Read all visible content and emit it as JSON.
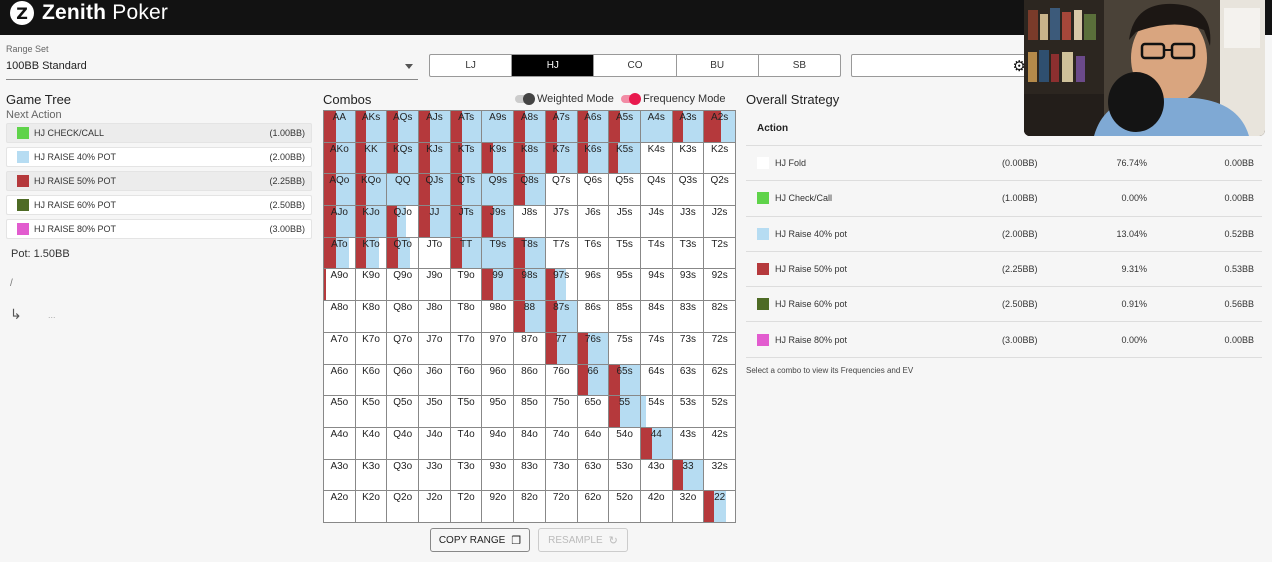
{
  "app": {
    "logo_letter": "Z",
    "name_bold": "Zenith",
    "name_rest": " Poker"
  },
  "range_set": {
    "label": "Range Set",
    "value": "100BB Standard"
  },
  "positions": [
    {
      "label": "LJ",
      "active": false
    },
    {
      "label": "HJ",
      "active": true
    },
    {
      "label": "CO",
      "active": false
    },
    {
      "label": "BU",
      "active": false
    },
    {
      "label": "SB",
      "active": false
    }
  ],
  "game_tree": {
    "title": "Game Tree",
    "next_action": "Next Action",
    "items": [
      {
        "label": "HJ CHECK/CALL",
        "bb": "(1.00BB)",
        "color": "#5fd34a",
        "highlight": true
      },
      {
        "label": "HJ RAISE 40% POT",
        "bb": "(2.00BB)",
        "color": "#b6dcf2",
        "highlight": false
      },
      {
        "label": "HJ RAISE 50% POT",
        "bb": "(2.25BB)",
        "color": "#b5393c",
        "highlight": true
      },
      {
        "label": "HJ RAISE 60% POT",
        "bb": "(2.50BB)",
        "color": "#4e6b25",
        "highlight": false
      },
      {
        "label": "HJ RAISE 80% POT",
        "bb": "(3.00BB)",
        "color": "#e25ccf",
        "highlight": false
      }
    ],
    "pot": "Pot: 1.50BB",
    "path": "/",
    "dots": "..."
  },
  "combos": {
    "title": "Combos",
    "weighted_label": "Weighted Mode",
    "frequency_label": "Frequency Mode",
    "colors": {
      "fold": "#ffffff",
      "raise40": "#b6dcf2",
      "raise50": "#b5393c"
    },
    "rows": [
      [
        [
          "AA",
          0.4,
          0.6
        ],
        [
          "AKs",
          0.35,
          0.65
        ],
        [
          "AQs",
          0.35,
          0.65
        ],
        [
          "AJs",
          0.35,
          0.65
        ],
        [
          "ATs",
          0.35,
          0.65
        ],
        [
          "A9s",
          0,
          1
        ],
        [
          "A8s",
          0.35,
          0.65
        ],
        [
          "A7s",
          0.35,
          0.65
        ],
        [
          "A6s",
          0.35,
          0.65
        ],
        [
          "A5s",
          0.35,
          0.65
        ],
        [
          "A4s",
          0,
          1
        ],
        [
          "A3s",
          0.35,
          0.65
        ],
        [
          "A2s",
          0.55,
          0.45
        ]
      ],
      [
        [
          "AKo",
          0.4,
          0.6
        ],
        [
          "KK",
          0.35,
          0.65
        ],
        [
          "KQs",
          0.35,
          0.65
        ],
        [
          "KJs",
          0.35,
          0.65
        ],
        [
          "KTs",
          0.35,
          0.65
        ],
        [
          "K9s",
          0.35,
          0.65
        ],
        [
          "K8s",
          0.35,
          0.65
        ],
        [
          "K7s",
          0.35,
          0.65
        ],
        [
          "K6s",
          0.35,
          0.65
        ],
        [
          "K5s",
          0.3,
          0.7
        ],
        [
          "K4s",
          0,
          0
        ],
        [
          "K3s",
          0,
          0
        ],
        [
          "K2s",
          0,
          0
        ]
      ],
      [
        [
          "AQo",
          0.4,
          0.6
        ],
        [
          "KQo",
          0.35,
          0.65
        ],
        [
          "QQ",
          0,
          1
        ],
        [
          "QJs",
          0.35,
          0.65
        ],
        [
          "QTs",
          0.35,
          0.65
        ],
        [
          "Q9s",
          0,
          1
        ],
        [
          "Q8s",
          0.35,
          0.65
        ],
        [
          "Q7s",
          0,
          0
        ],
        [
          "Q6s",
          0,
          0
        ],
        [
          "Q5s",
          0,
          0
        ],
        [
          "Q4s",
          0,
          0
        ],
        [
          "Q3s",
          0,
          0
        ],
        [
          "Q2s",
          0,
          0
        ]
      ],
      [
        [
          "AJo",
          0.4,
          0.6
        ],
        [
          "KJo",
          0.35,
          0.65
        ],
        [
          "QJo",
          0.3,
          0.3
        ],
        [
          "JJ",
          0.35,
          0.65
        ],
        [
          "JTs",
          0.35,
          0.65
        ],
        [
          "J9s",
          0.35,
          0.65
        ],
        [
          "J8s",
          0,
          0
        ],
        [
          "J7s",
          0,
          0
        ],
        [
          "J6s",
          0,
          0
        ],
        [
          "J5s",
          0,
          0
        ],
        [
          "J4s",
          0,
          0
        ],
        [
          "J3s",
          0,
          0
        ],
        [
          "J2s",
          0,
          0
        ]
      ],
      [
        [
          "ATo",
          0.4,
          0.4
        ],
        [
          "KTo",
          0.35,
          0.4
        ],
        [
          "QTo",
          0.35,
          0.4
        ],
        [
          "JTo",
          0,
          0
        ],
        [
          "TT",
          0.35,
          0.65
        ],
        [
          "T9s",
          0,
          1
        ],
        [
          "T8s",
          0.35,
          0.65
        ],
        [
          "T7s",
          0,
          0
        ],
        [
          "T6s",
          0,
          0
        ],
        [
          "T5s",
          0,
          0
        ],
        [
          "T4s",
          0,
          0
        ],
        [
          "T3s",
          0,
          0
        ],
        [
          "T2s",
          0,
          0
        ]
      ],
      [
        [
          "A9o",
          0.05,
          0
        ],
        [
          "K9o",
          0,
          0
        ],
        [
          "Q9o",
          0,
          0
        ],
        [
          "J9o",
          0,
          0
        ],
        [
          "T9o",
          0,
          0
        ],
        [
          "99",
          0.35,
          0.65
        ],
        [
          "98s",
          0.35,
          0.65
        ],
        [
          "97s",
          0.3,
          0.35
        ],
        [
          "96s",
          0,
          0
        ],
        [
          "95s",
          0,
          0
        ],
        [
          "94s",
          0,
          0
        ],
        [
          "93s",
          0,
          0
        ],
        [
          "92s",
          0,
          0
        ]
      ],
      [
        [
          "A8o",
          0,
          0
        ],
        [
          "K8o",
          0,
          0
        ],
        [
          "Q8o",
          0,
          0
        ],
        [
          "J8o",
          0,
          0
        ],
        [
          "T8o",
          0,
          0
        ],
        [
          "98o",
          0,
          0
        ],
        [
          "88",
          0.35,
          0.65
        ],
        [
          "87s",
          0.35,
          0.65
        ],
        [
          "86s",
          0,
          0
        ],
        [
          "85s",
          0,
          0
        ],
        [
          "84s",
          0,
          0
        ],
        [
          "83s",
          0,
          0
        ],
        [
          "82s",
          0,
          0
        ]
      ],
      [
        [
          "A7o",
          0,
          0
        ],
        [
          "K7o",
          0,
          0
        ],
        [
          "Q7o",
          0,
          0
        ],
        [
          "J7o",
          0,
          0
        ],
        [
          "T7o",
          0,
          0
        ],
        [
          "97o",
          0,
          0
        ],
        [
          "87o",
          0,
          0
        ],
        [
          "77",
          0.35,
          0.65
        ],
        [
          "76s",
          0.35,
          0.65
        ],
        [
          "75s",
          0,
          0
        ],
        [
          "74s",
          0,
          0
        ],
        [
          "73s",
          0,
          0
        ],
        [
          "72s",
          0,
          0
        ]
      ],
      [
        [
          "A6o",
          0,
          0
        ],
        [
          "K6o",
          0,
          0
        ],
        [
          "Q6o",
          0,
          0
        ],
        [
          "J6o",
          0,
          0
        ],
        [
          "T6o",
          0,
          0
        ],
        [
          "96o",
          0,
          0
        ],
        [
          "86o",
          0,
          0
        ],
        [
          "76o",
          0,
          0
        ],
        [
          "66",
          0.35,
          0.65
        ],
        [
          "65s",
          0.35,
          0.65
        ],
        [
          "64s",
          0,
          0
        ],
        [
          "63s",
          0,
          0
        ],
        [
          "62s",
          0,
          0
        ]
      ],
      [
        [
          "A5o",
          0,
          0
        ],
        [
          "K5o",
          0,
          0
        ],
        [
          "Q5o",
          0,
          0
        ],
        [
          "J5o",
          0,
          0
        ],
        [
          "T5o",
          0,
          0
        ],
        [
          "95o",
          0,
          0
        ],
        [
          "85o",
          0,
          0
        ],
        [
          "75o",
          0,
          0
        ],
        [
          "65o",
          0,
          0
        ],
        [
          "55",
          0.35,
          0.65
        ],
        [
          "54s",
          0,
          0.15
        ],
        [
          "53s",
          0,
          0
        ],
        [
          "52s",
          0
        ]
      ],
      [
        [
          "A4o",
          0,
          0
        ],
        [
          "K4o",
          0,
          0
        ],
        [
          "Q4o",
          0,
          0
        ],
        [
          "J4o",
          0,
          0
        ],
        [
          "T4o",
          0,
          0
        ],
        [
          "94o",
          0,
          0
        ],
        [
          "84o",
          0,
          0
        ],
        [
          "74o",
          0,
          0
        ],
        [
          "64o",
          0,
          0
        ],
        [
          "54o",
          0,
          0
        ],
        [
          "44",
          0.35,
          0.65
        ],
        [
          "43s",
          0,
          0
        ],
        [
          "42s",
          0,
          0
        ]
      ],
      [
        [
          "A3o",
          0,
          0
        ],
        [
          "K3o",
          0,
          0
        ],
        [
          "Q3o",
          0,
          0
        ],
        [
          "J3o",
          0,
          0
        ],
        [
          "T3o",
          0,
          0
        ],
        [
          "93o",
          0,
          0
        ],
        [
          "83o",
          0,
          0
        ],
        [
          "73o",
          0,
          0
        ],
        [
          "63o",
          0,
          0
        ],
        [
          "53o",
          0,
          0
        ],
        [
          "43o",
          0,
          0
        ],
        [
          "33",
          0.35,
          0.65
        ],
        [
          "32s",
          0,
          0
        ]
      ],
      [
        [
          "A2o",
          0,
          0
        ],
        [
          "K2o",
          0,
          0
        ],
        [
          "Q2o",
          0,
          0
        ],
        [
          "J2o",
          0,
          0
        ],
        [
          "T2o",
          0,
          0
        ],
        [
          "92o",
          0,
          0
        ],
        [
          "82o",
          0,
          0
        ],
        [
          "72o",
          0,
          0
        ],
        [
          "62o",
          0,
          0
        ],
        [
          "52o",
          0,
          0
        ],
        [
          "42o",
          0,
          0
        ],
        [
          "32o",
          0,
          0
        ],
        [
          "22",
          0.3,
          0.4
        ]
      ]
    ],
    "copy_label": "COPY RANGE",
    "resample_label": "RESAMPLE"
  },
  "strategy": {
    "title": "Overall Strategy",
    "header": "Action",
    "rows": [
      {
        "name": "HJ Fold",
        "bb": "(0.00BB)",
        "pct": "76.74%",
        "ev": "0.00BB",
        "color": "#ffffff"
      },
      {
        "name": "HJ Check/Call",
        "bb": "(1.00BB)",
        "pct": "0.00%",
        "ev": "0.00BB",
        "color": "#5fd34a"
      },
      {
        "name": "HJ Raise 40% pot",
        "bb": "(2.00BB)",
        "pct": "13.04%",
        "ev": "0.52BB",
        "color": "#b6dcf2"
      },
      {
        "name": "HJ Raise 50% pot",
        "bb": "(2.25BB)",
        "pct": "9.31%",
        "ev": "0.53BB",
        "color": "#b5393c"
      },
      {
        "name": "HJ Raise 60% pot",
        "bb": "(2.50BB)",
        "pct": "0.91%",
        "ev": "0.56BB",
        "color": "#4e6b25"
      },
      {
        "name": "HJ Raise 80% pot",
        "bb": "(3.00BB)",
        "pct": "0.00%",
        "ev": "0.00BB",
        "color": "#e25ccf"
      }
    ],
    "note": "Select a combo to view its Frequencies and EV"
  }
}
